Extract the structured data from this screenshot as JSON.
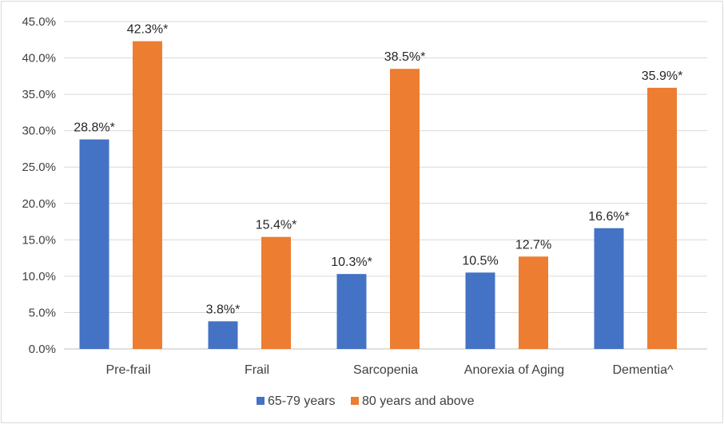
{
  "chart_data": {
    "type": "bar",
    "categories": [
      "Pre-frail",
      "Frail",
      "Sarcopenia",
      "Anorexia of Aging",
      "Dementia^"
    ],
    "series": [
      {
        "name": "65-79 years",
        "color": "#4472c4",
        "values": [
          28.8,
          3.8,
          10.3,
          10.5,
          16.6
        ],
        "labels": [
          "28.8%*",
          "3.8%*",
          "10.3%*",
          "10.5%",
          "16.6%*"
        ]
      },
      {
        "name": "80 years and above",
        "color": "#ed7d31",
        "values": [
          42.3,
          15.4,
          38.5,
          12.7,
          35.9
        ],
        "labels": [
          "42.3%*",
          "15.4%*",
          "38.5%*",
          "12.7%",
          "35.9%*"
        ]
      }
    ],
    "y_ticks": [
      "0.0%",
      "5.0%",
      "10.0%",
      "15.0%",
      "20.0%",
      "25.0%",
      "30.0%",
      "35.0%",
      "40.0%",
      "45.0%"
    ],
    "ylim": [
      0,
      45
    ],
    "grid": true,
    "legend_position": "bottom"
  }
}
